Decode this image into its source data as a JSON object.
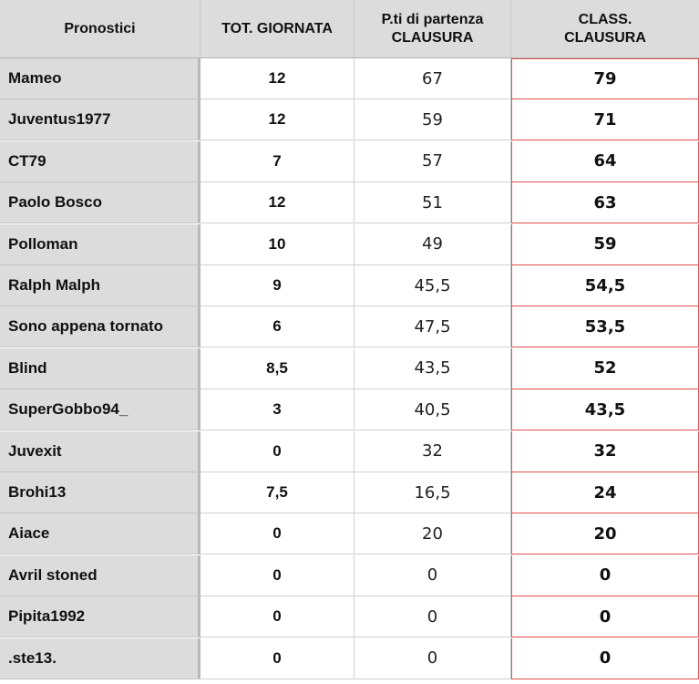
{
  "table": {
    "headers": {
      "col0": "Pronostici",
      "col1": "TOT. GIORNATA",
      "col2_line1": "P.ti di partenza",
      "col2_line2": "CLAUSURA",
      "col3_line1": "CLASS.",
      "col3_line2": "CLAUSURA"
    },
    "rows": [
      {
        "name": "Mameo",
        "tot": "12",
        "start": "67",
        "class": "79"
      },
      {
        "name": "Juventus1977",
        "tot": "12",
        "start": "59",
        "class": "71"
      },
      {
        "name": "CT79",
        "tot": "7",
        "start": "57",
        "class": "64"
      },
      {
        "name": "Paolo Bosco",
        "tot": "12",
        "start": "51",
        "class": "63"
      },
      {
        "name": "Polloman",
        "tot": "10",
        "start": "49",
        "class": "59"
      },
      {
        "name": "Ralph Malph",
        "tot": "9",
        "start": "45,5",
        "class": "54,5"
      },
      {
        "name": "Sono appena tornato",
        "tot": "6",
        "start": "47,5",
        "class": "53,5"
      },
      {
        "name": "Blind",
        "tot": "8,5",
        "start": "43,5",
        "class": "52"
      },
      {
        "name": "SuperGobbo94_",
        "tot": "3",
        "start": "40,5",
        "class": "43,5"
      },
      {
        "name": "Juvexit",
        "tot": "0",
        "start": "32",
        "class": "32"
      },
      {
        "name": "Brohi13",
        "tot": "7,5",
        "start": "16,5",
        "class": "24"
      },
      {
        "name": "Aiace",
        "tot": "0",
        "start": "20",
        "class": "20"
      },
      {
        "name": "Avril stoned",
        "tot": "0",
        "start": "0",
        "class": "0"
      },
      {
        "name": "Pipita1992",
        "tot": "0",
        "start": "0",
        "class": "0"
      },
      {
        "name": ".ste13.",
        "tot": "0",
        "start": "0",
        "class": "0"
      }
    ]
  },
  "colors": {
    "header_bg": "#dcdcdc",
    "name_col_bg": "#dcdcdc",
    "highlight_border": "#e05050"
  }
}
